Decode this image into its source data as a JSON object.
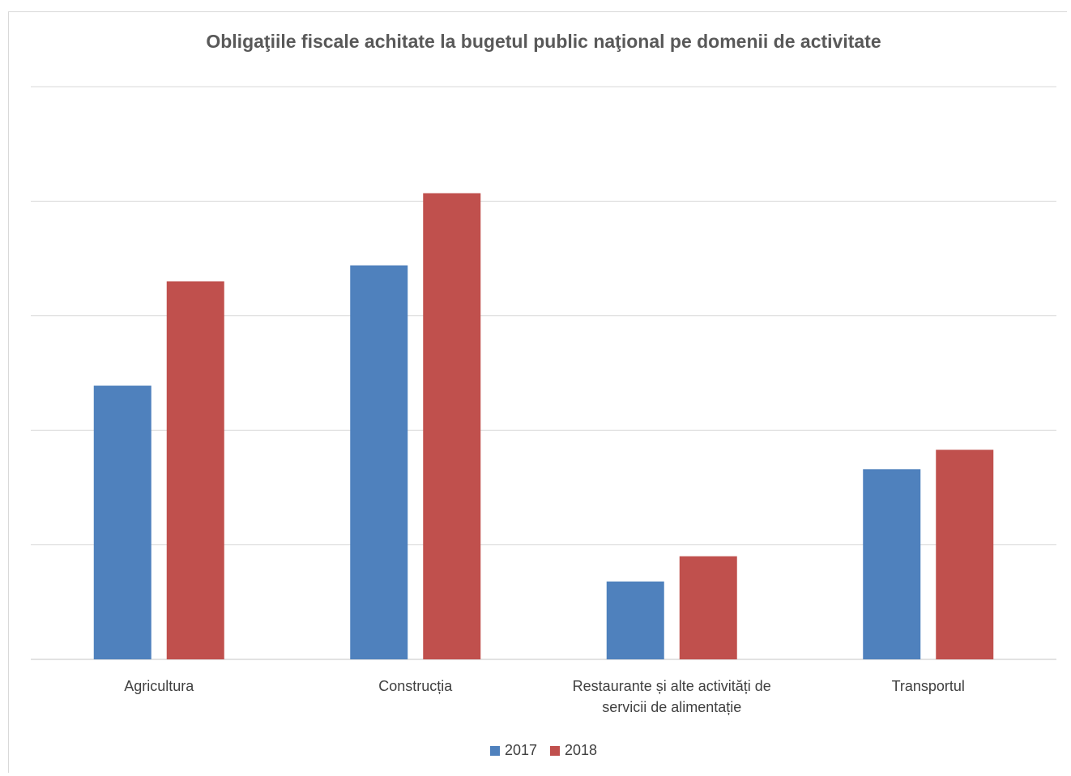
{
  "chart_data": {
    "type": "bar",
    "title": "Obligaţiile fiscale achitate la bugetul public naţional pe domenii de activitate",
    "categories": [
      [
        "Agricultura"
      ],
      [
        "Construcția"
      ],
      [
        "Restaurante și alte activități de",
        "servicii de alimentație"
      ],
      [
        "Transportul"
      ]
    ],
    "series": [
      {
        "name": "2017",
        "color": "#4f81bd",
        "values": [
          2.39,
          3.44,
          0.68,
          1.66
        ]
      },
      {
        "name": "2018",
        "color": "#c0504d",
        "values": [
          3.3,
          4.07,
          0.9,
          1.83
        ]
      }
    ],
    "ylim": [
      0,
      5
    ],
    "grid": true,
    "legend_position": "bottom"
  }
}
